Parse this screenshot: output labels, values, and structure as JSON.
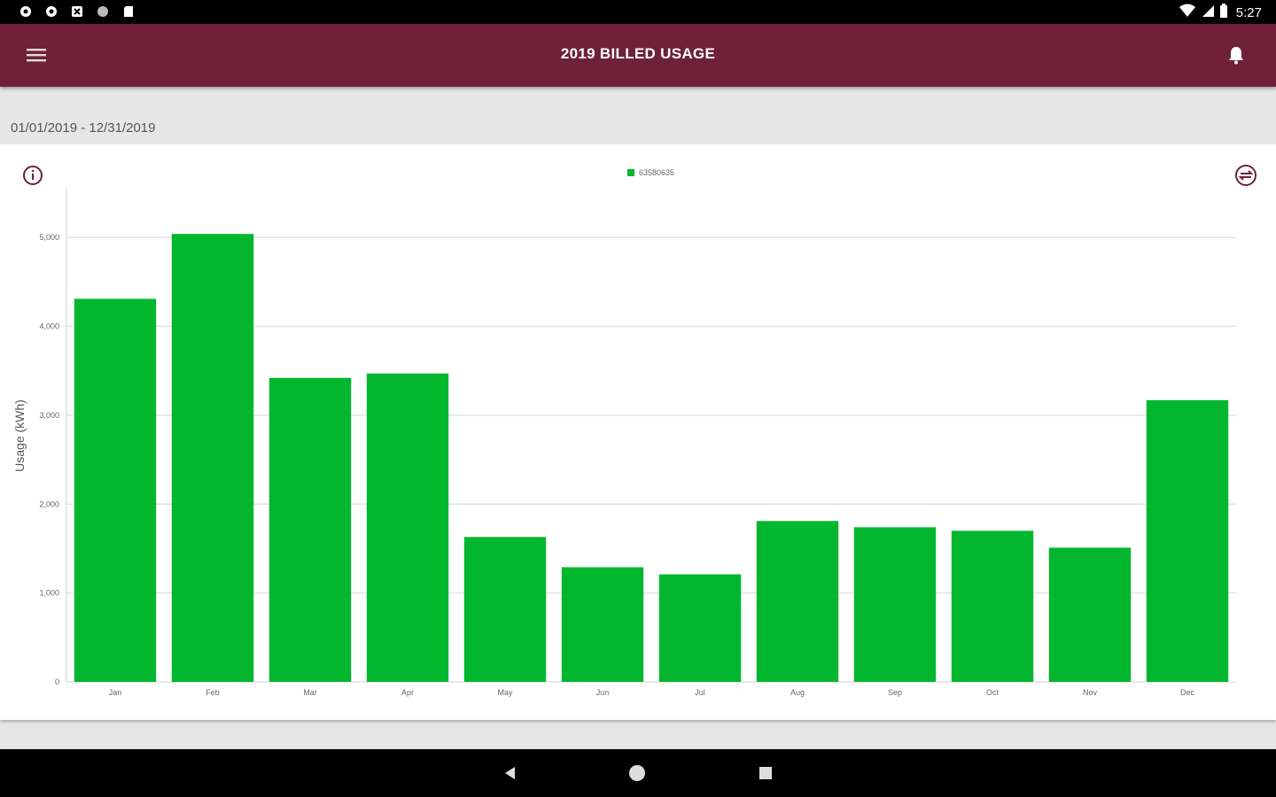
{
  "status_bar": {
    "time": "5:27",
    "left_icons": [
      "settings-icon",
      "settings-icon",
      "box-icon",
      "circle-icon",
      "sd-card-icon"
    ],
    "right_icons": [
      "wifi-icon",
      "signal-icon",
      "battery-icon"
    ]
  },
  "app_bar": {
    "title": "2019 BILLED USAGE",
    "menu_icon": "hamburger-menu-icon",
    "notification_icon": "bell-icon",
    "color": "#6e2139"
  },
  "date_range": "01/01/2019 - 12/31/2019",
  "chart_card": {
    "info_icon": "info-icon",
    "compare_icon": "compare-icon"
  },
  "chart_data": {
    "type": "bar",
    "title": "",
    "xlabel": "",
    "ylabel": "Usage (kWh)",
    "categories": [
      "Jan",
      "Feb",
      "Mar",
      "Apr",
      "May",
      "Jun",
      "Jul",
      "Aug",
      "Sep",
      "Oct",
      "Nov",
      "Dec"
    ],
    "series": [
      {
        "name": "63580635",
        "color": "#02b72e",
        "values": [
          4310,
          5040,
          3420,
          3470,
          1630,
          1290,
          1210,
          1810,
          1740,
          1700,
          1510,
          3170
        ]
      }
    ],
    "ylim": [
      0,
      5500
    ],
    "yticks": [
      0,
      1000,
      2000,
      3000,
      4000,
      5000
    ],
    "ytick_labels": [
      "0",
      "1,000",
      "2,000",
      "3,000",
      "4,000",
      "5,000"
    ],
    "grid": true,
    "legend_position": "top-center"
  },
  "nav_bar": {
    "back_icon": "back-triangle-icon",
    "home_icon": "home-circle-icon",
    "recent_icon": "recent-apps-square-icon"
  }
}
